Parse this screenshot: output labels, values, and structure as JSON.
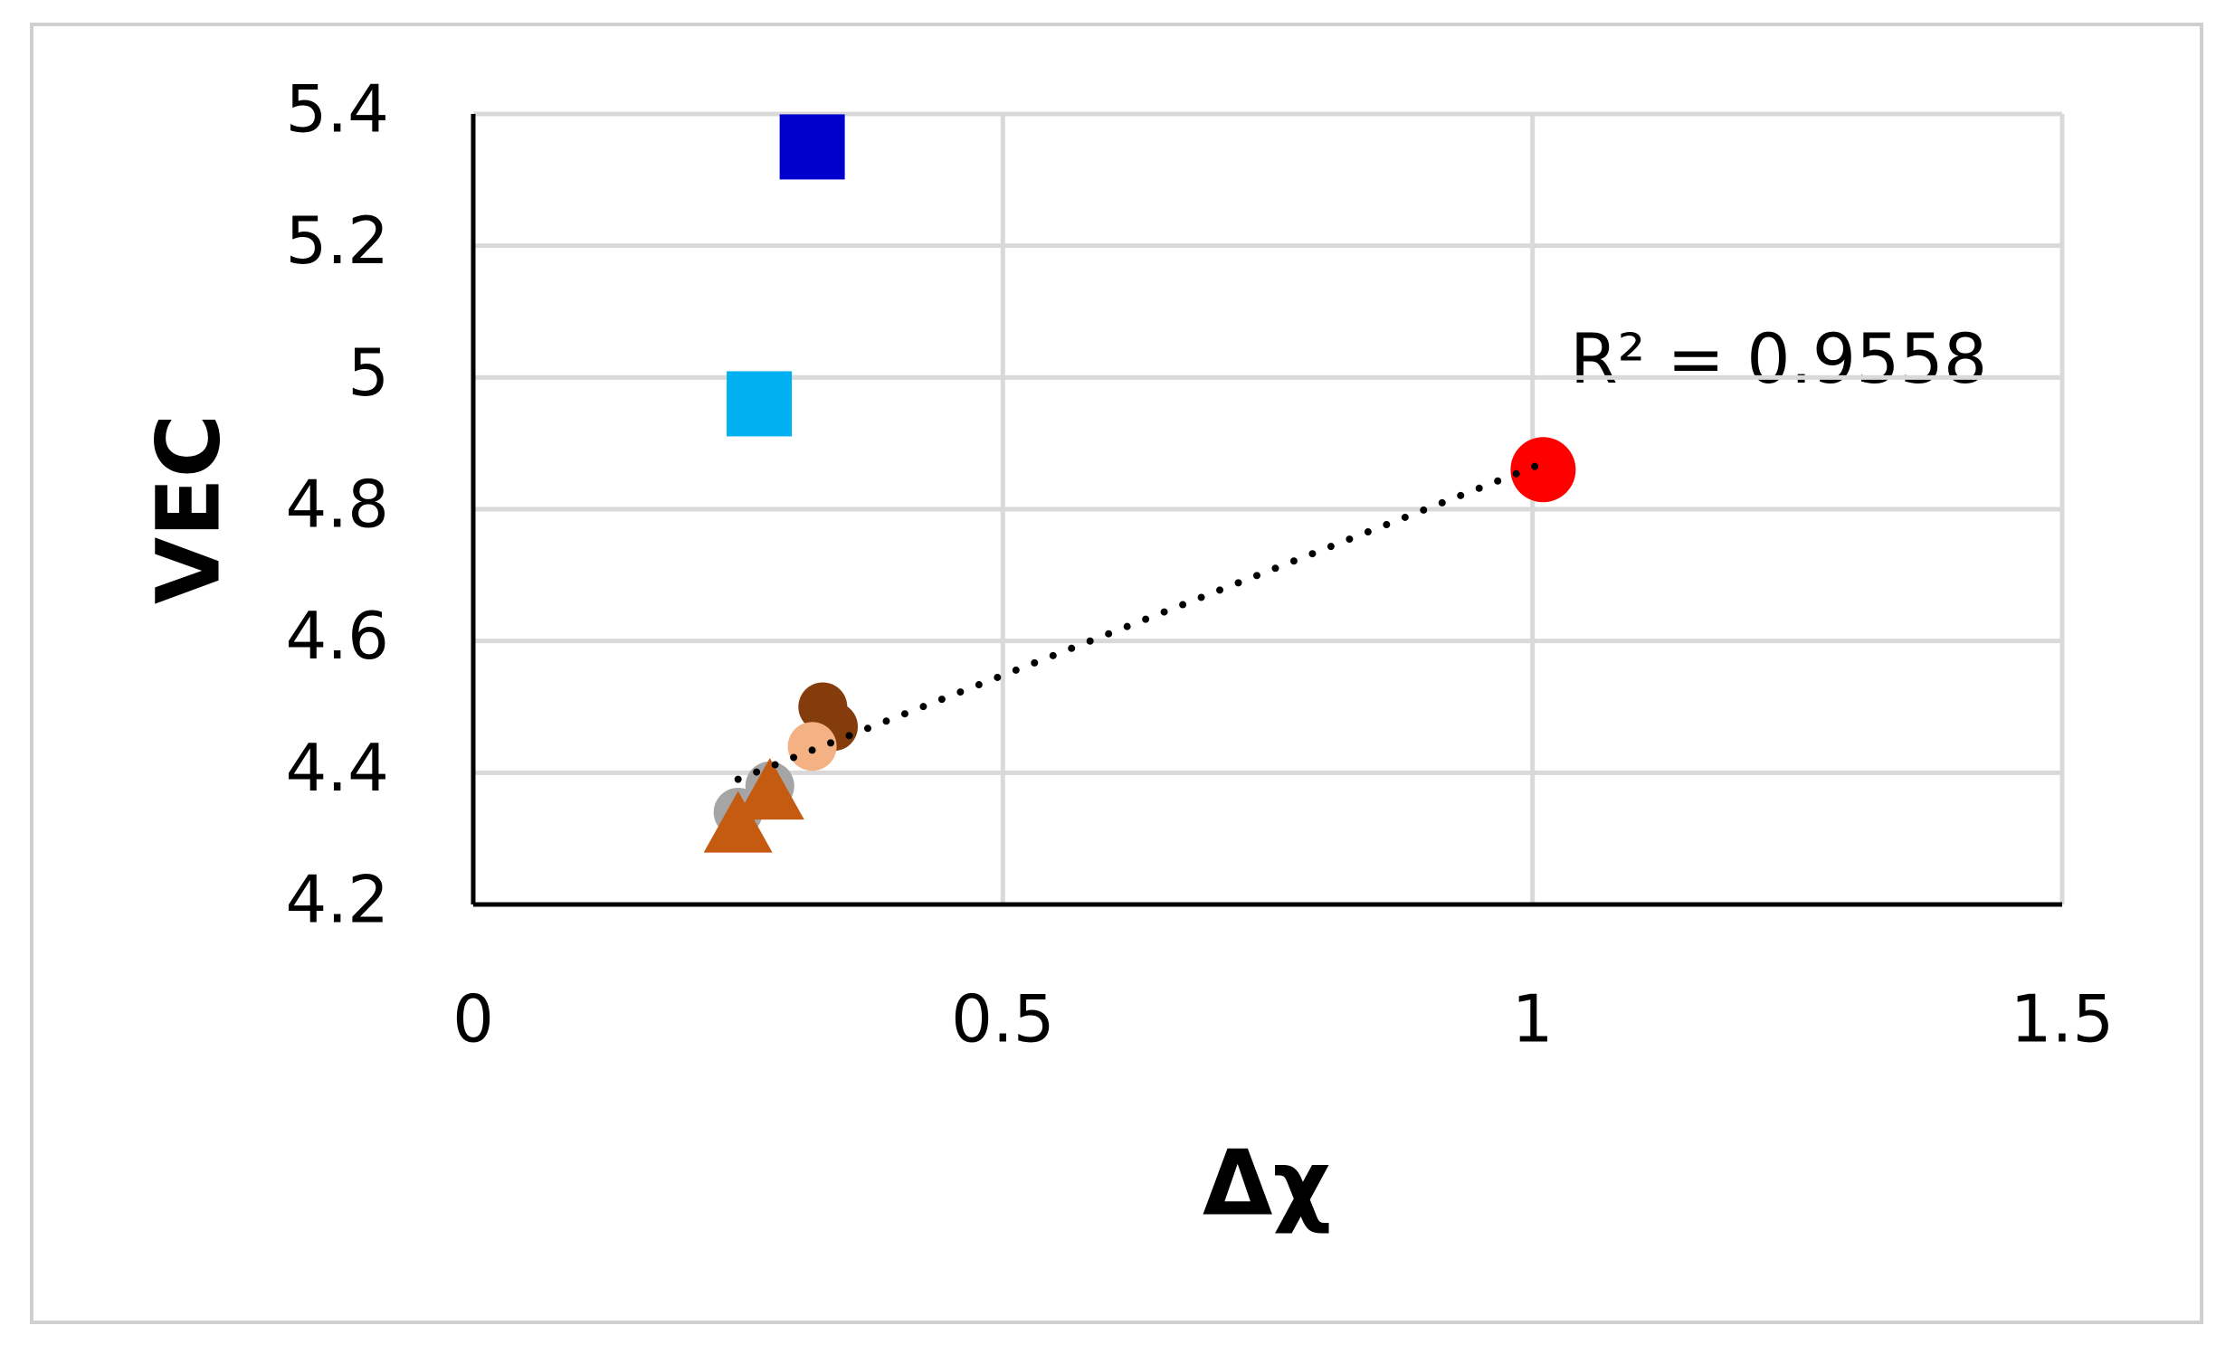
{
  "chart_data": {
    "type": "scatter",
    "x_label": "Δχ",
    "y_label": "VEC",
    "annotation": "R² = 0.9558",
    "xlim": [
      0,
      1.5
    ],
    "xticks": [
      0,
      0.5,
      1,
      1.5
    ],
    "ylim": [
      4.2,
      5.4
    ],
    "yticks": [
      4.2,
      4.4,
      4.6,
      4.8,
      5,
      5.2,
      5.4
    ],
    "grid": true,
    "series": [
      {
        "marker": "square",
        "color": "#0000cc",
        "x": [
          0.32
        ],
        "values": [
          5.35
        ]
      },
      {
        "marker": "square",
        "color": "#00b0f0",
        "x": [
          0.27
        ],
        "values": [
          4.96
        ]
      },
      {
        "marker": "circle",
        "color": "#ff0000",
        "x": [
          1.01
        ],
        "values": [
          4.86
        ]
      },
      {
        "marker": "circle",
        "color": "#843c0c",
        "x": [
          0.33,
          0.34
        ],
        "values": [
          4.5,
          4.47
        ]
      },
      {
        "marker": "circle",
        "color": "#f4b183",
        "x": [
          0.32
        ],
        "values": [
          4.44
        ]
      },
      {
        "marker": "circle",
        "color": "#a5a5a5",
        "x": [
          0.25,
          0.28
        ],
        "values": [
          4.34,
          4.38
        ]
      },
      {
        "marker": "triangle",
        "color": "#c55a11",
        "x": [
          0.25,
          0.28
        ],
        "values": [
          4.32,
          4.37
        ]
      }
    ],
    "trendline": {
      "color": "#000000",
      "x": [
        0.25,
        1.01
      ],
      "values": [
        4.39,
        4.87
      ]
    }
  }
}
